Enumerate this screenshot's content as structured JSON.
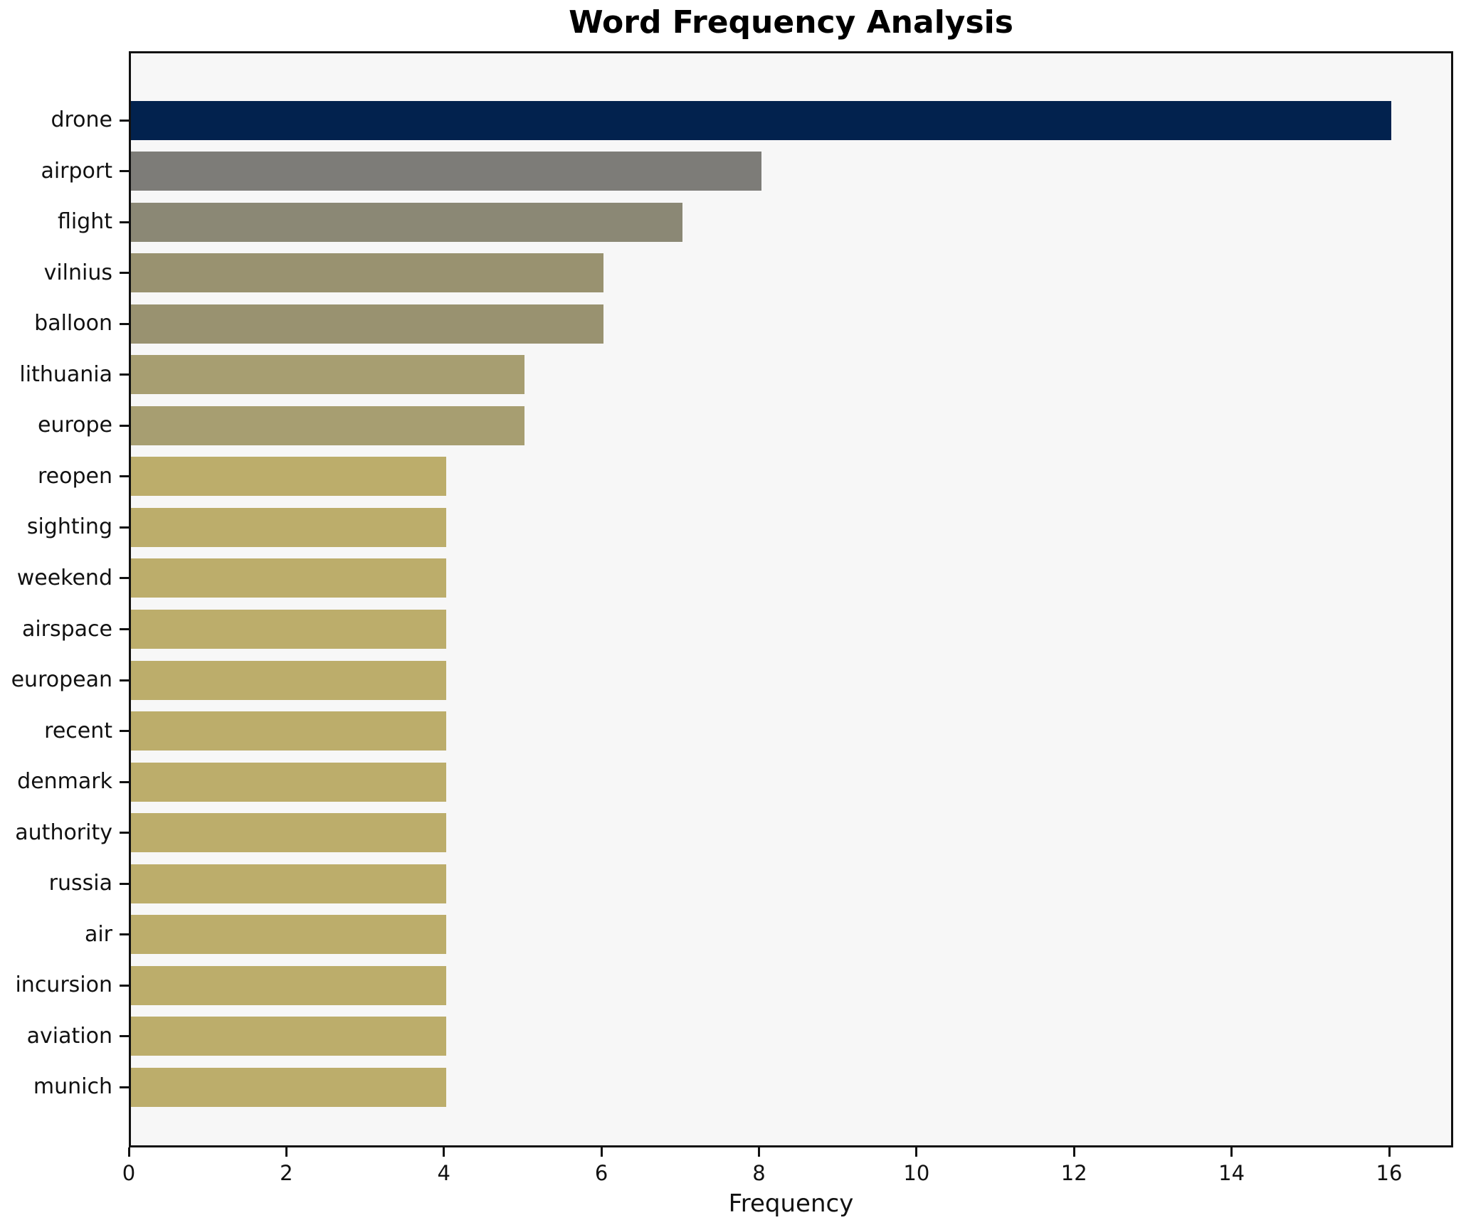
{
  "chart_data": {
    "type": "bar",
    "orientation": "horizontal",
    "title": "Word Frequency Analysis",
    "xlabel": "Frequency",
    "ylabel": "",
    "categories": [
      "drone",
      "airport",
      "flight",
      "vilnius",
      "balloon",
      "lithuania",
      "europe",
      "reopen",
      "sighting",
      "weekend",
      "airspace",
      "european",
      "recent",
      "denmark",
      "authority",
      "russia",
      "air",
      "incursion",
      "aviation",
      "munich"
    ],
    "values": [
      16,
      8,
      7,
      6,
      6,
      5,
      5,
      4,
      4,
      4,
      4,
      4,
      4,
      4,
      4,
      4,
      4,
      4,
      4,
      4
    ],
    "bar_colors": [
      "#02224e",
      "#7d7c78",
      "#8b8875",
      "#999270",
      "#999270",
      "#a79e71",
      "#a79e71",
      "#bcad6b",
      "#bcad6b",
      "#bcad6b",
      "#bcad6b",
      "#bcad6b",
      "#bcad6b",
      "#bcad6b",
      "#bcad6b",
      "#bcad6b",
      "#bcad6b",
      "#bcad6b",
      "#bcad6b",
      "#bcad6b"
    ],
    "xticks": [
      0,
      2,
      4,
      6,
      8,
      10,
      12,
      14,
      16
    ],
    "xlim": [
      0,
      16.8
    ],
    "grid": false,
    "legend": null,
    "colors": {
      "plot_background": "#f7f7f7",
      "figure_background": "#ffffff",
      "spine": "#111111",
      "text": "#111111"
    }
  }
}
